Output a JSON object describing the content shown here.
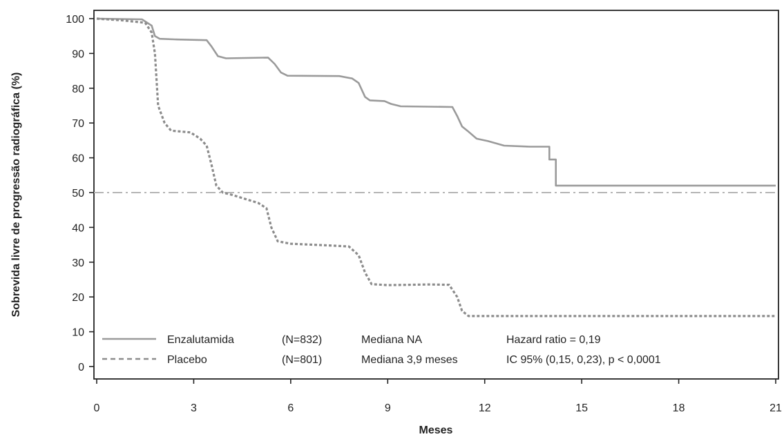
{
  "chart_data": {
    "type": "line",
    "title": "",
    "xlabel": "Meses",
    "ylabel": "Sobrevida livre de progressão radiográfica (%)",
    "xlim": [
      0,
      21
    ],
    "ylim": [
      0,
      100
    ],
    "x_ticks": [
      "0",
      "3",
      "6",
      "9",
      "12",
      "15",
      "18",
      "21"
    ],
    "y_ticks": [
      "0",
      "10",
      "20",
      "30",
      "40",
      "50",
      "60",
      "70",
      "80",
      "90",
      "100"
    ],
    "grid": false,
    "legend_position": "bottom-left",
    "reference_line": {
      "y": 50,
      "style": "dash-dot"
    },
    "colors": {
      "enzalutamida": "#9a9a9a",
      "placebo": "#8c8c8c",
      "reference": "#b5b5b5",
      "axis": "#222222"
    },
    "series": [
      {
        "name": "Enzalutamida",
        "style": "solid",
        "n": "(N=832)",
        "median": "Mediana NA",
        "stat": "Hazard ratio = 0,19",
        "points": [
          [
            0,
            100
          ],
          [
            1.4,
            99.8
          ],
          [
            1.7,
            98
          ],
          [
            1.8,
            95
          ],
          [
            1.95,
            94.2
          ],
          [
            2.5,
            94
          ],
          [
            3.4,
            93.8
          ],
          [
            3.55,
            92
          ],
          [
            3.75,
            89.2
          ],
          [
            4,
            88.6
          ],
          [
            5.3,
            88.8
          ],
          [
            5.5,
            87
          ],
          [
            5.7,
            84.5
          ],
          [
            5.9,
            83.6
          ],
          [
            7.5,
            83.5
          ],
          [
            7.9,
            82.8
          ],
          [
            8.1,
            81.5
          ],
          [
            8.3,
            77.5
          ],
          [
            8.45,
            76.5
          ],
          [
            8.9,
            76.3
          ],
          [
            9.1,
            75.5
          ],
          [
            9.4,
            74.8
          ],
          [
            11,
            74.6
          ],
          [
            11.15,
            72
          ],
          [
            11.3,
            69
          ],
          [
            11.5,
            67.5
          ],
          [
            11.75,
            65.5
          ],
          [
            12.1,
            64.8
          ],
          [
            12.6,
            63.5
          ],
          [
            13.4,
            63.2
          ],
          [
            14,
            63.2
          ],
          [
            14,
            59.5
          ],
          [
            14.2,
            59.5
          ],
          [
            14.2,
            52
          ],
          [
            21,
            52
          ]
        ]
      },
      {
        "name": "Placebo",
        "style": "dashed",
        "n": "(N=801)",
        "median": "Mediana 3,9 meses",
        "stat": "IC 95% (0,15, 0,23), p < 0,0001",
        "points": [
          [
            0,
            100
          ],
          [
            0.8,
            99.5
          ],
          [
            1.5,
            98.8
          ],
          [
            1.7,
            96
          ],
          [
            1.8,
            90
          ],
          [
            1.9,
            75
          ],
          [
            2.1,
            70
          ],
          [
            2.3,
            67.8
          ],
          [
            2.9,
            67.3
          ],
          [
            3.2,
            65.5
          ],
          [
            3.4,
            63.5
          ],
          [
            3.55,
            58
          ],
          [
            3.7,
            52
          ],
          [
            3.9,
            50
          ],
          [
            4.2,
            49.3
          ],
          [
            5,
            47
          ],
          [
            5.25,
            45.5
          ],
          [
            5.4,
            40
          ],
          [
            5.6,
            36
          ],
          [
            6,
            35.3
          ],
          [
            7.2,
            34.8
          ],
          [
            7.8,
            34.5
          ],
          [
            8.1,
            32
          ],
          [
            8.3,
            27
          ],
          [
            8.5,
            23.7
          ],
          [
            9,
            23.4
          ],
          [
            10.3,
            23.6
          ],
          [
            10.9,
            23.5
          ],
          [
            11.15,
            20
          ],
          [
            11.3,
            16
          ],
          [
            11.5,
            14.5
          ],
          [
            21,
            14.5
          ]
        ]
      }
    ]
  }
}
